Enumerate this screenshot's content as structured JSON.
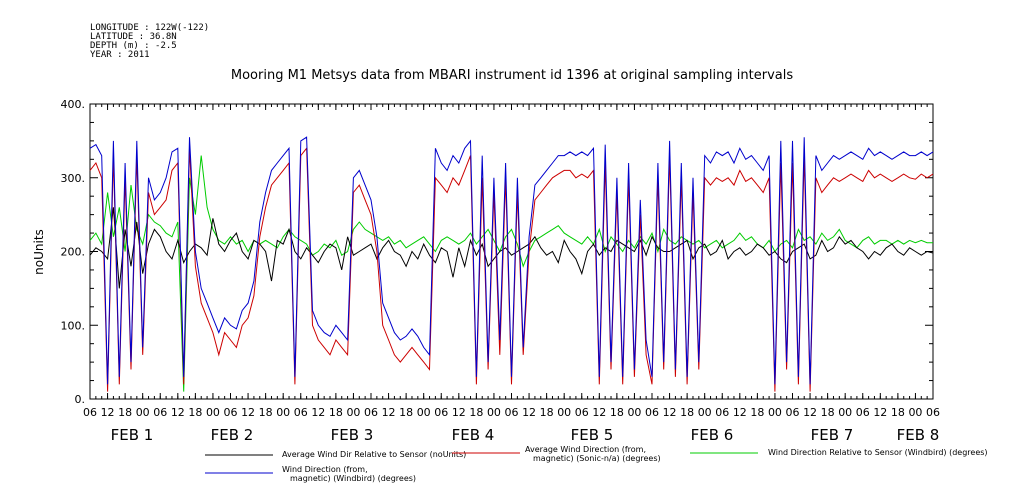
{
  "meta": {
    "longitude": "LONGITUDE : 122W(-122)",
    "latitude": "LATITUDE : 36.8N",
    "depth": "DEPTH (m) : -2.5",
    "year": "YEAR : 2011"
  },
  "chart_data": {
    "type": "line",
    "title": "Mooring M1 Metsys data from MBARI instrument id 1396 at original sampling intervals",
    "ylabel": "noUnits",
    "xlabel": "",
    "ylim": [
      0,
      400
    ],
    "xlim": [
      0,
      144
    ],
    "x_unit": "hours since 2011-02-01 06:00",
    "yticks": [
      0,
      100,
      200,
      300,
      400
    ],
    "hour_ticks": [
      "06",
      "12",
      "18",
      "00",
      "06",
      "12",
      "18",
      "00",
      "06",
      "12",
      "18",
      "00",
      "06",
      "12",
      "18",
      "00",
      "06",
      "12",
      "18",
      "00",
      "06",
      "12",
      "18",
      "00",
      "06",
      "12",
      "18",
      "00",
      "06",
      "12",
      "18",
      "00",
      "06",
      "12",
      "18",
      "00",
      "06",
      "12",
      "18",
      "00",
      "06",
      "12",
      "18",
      "00",
      "06",
      "12",
      "18",
      "00",
      "06"
    ],
    "day_labels": [
      {
        "label": "FEB  1",
        "x": 9
      },
      {
        "label": "FEB  2",
        "x": 27
      },
      {
        "label": "FEB  3",
        "x": 51
      },
      {
        "label": "FEB  4",
        "x": 75
      },
      {
        "label": "FEB  5",
        "x": 99
      },
      {
        "label": "FEB  6",
        "x": 123
      },
      {
        "label": "FEB  7",
        "x": 147
      },
      {
        "label": "FEB  8",
        "x": 168
      }
    ],
    "grid": false,
    "legend_position": "bottom",
    "series": [
      {
        "name": "Average Wind Dir Relative to Sensor (noUnits)",
        "color": "#000000",
        "x": [
          0,
          1,
          2,
          3,
          4,
          5,
          6,
          7,
          8,
          9,
          10,
          11,
          12,
          13,
          14,
          15,
          16,
          17,
          18,
          19,
          20,
          21,
          22,
          23,
          24,
          25,
          26,
          27,
          28,
          29,
          30,
          31,
          32,
          33,
          34,
          35,
          36,
          37,
          38,
          39,
          40,
          41,
          42,
          43,
          44,
          45,
          46,
          47,
          48,
          49,
          50,
          51,
          52,
          53,
          54,
          55,
          56,
          57,
          58,
          59,
          60,
          61,
          62,
          63,
          64,
          65,
          66,
          67,
          68,
          69,
          70,
          71,
          72,
          73,
          74,
          75,
          76,
          77,
          78,
          79,
          80,
          81,
          82,
          83,
          84,
          85,
          86,
          87,
          88,
          89,
          90,
          91,
          92,
          93,
          94,
          95,
          96,
          97,
          98,
          99,
          100,
          101,
          102,
          103,
          104,
          105,
          106,
          107,
          108,
          109,
          110,
          111,
          112,
          113,
          114,
          115,
          116,
          117,
          118,
          119,
          120,
          121,
          122,
          123,
          124,
          125,
          126,
          127,
          128,
          129,
          130,
          131,
          132,
          133,
          134,
          135,
          136,
          137,
          138,
          139,
          140,
          141,
          142,
          143,
          144
        ],
        "values": [
          195,
          205,
          200,
          190,
          260,
          150,
          230,
          180,
          240,
          170,
          210,
          230,
          220,
          200,
          190,
          215,
          185,
          200,
          210,
          205,
          195,
          245,
          210,
          200,
          215,
          225,
          200,
          190,
          215,
          210,
          200,
          160,
          215,
          210,
          230,
          200,
          190,
          205,
          195,
          185,
          200,
          210,
          205,
          175,
          220,
          195,
          200,
          205,
          210,
          190,
          205,
          215,
          200,
          195,
          180,
          200,
          190,
          210,
          195,
          185,
          205,
          200,
          165,
          205,
          180,
          215,
          195,
          210,
          180,
          190,
          200,
          205,
          195,
          200,
          205,
          210,
          220,
          205,
          195,
          200,
          185,
          215,
          200,
          190,
          170,
          200,
          210,
          195,
          205,
          200,
          215,
          210,
          205,
          200,
          215,
          195,
          220,
          205,
          200,
          200,
          205,
          210,
          215,
          190,
          205,
          210,
          195,
          200,
          215,
          190,
          200,
          205,
          195,
          200,
          210,
          205,
          195,
          200,
          190,
          185,
          200,
          205,
          210,
          190,
          195,
          215,
          200,
          205,
          220,
          210,
          215,
          205,
          200,
          190,
          200,
          195,
          205,
          210,
          200,
          195,
          205,
          200,
          195,
          200,
          198
        ]
      },
      {
        "name": "Average Wind Direction (from, magnetic) (Sonic-n/a) (degrees)",
        "color": "#cc0000",
        "x": [
          0,
          1,
          2,
          3,
          4,
          5,
          6,
          7,
          8,
          9,
          10,
          11,
          12,
          13,
          14,
          15,
          16,
          17,
          18,
          19,
          20,
          21,
          22,
          23,
          24,
          25,
          26,
          27,
          28,
          29,
          30,
          31,
          32,
          33,
          34,
          35,
          36,
          37,
          38,
          39,
          40,
          41,
          42,
          43,
          44,
          45,
          46,
          47,
          48,
          49,
          50,
          51,
          52,
          53,
          54,
          55,
          56,
          57,
          58,
          59,
          60,
          61,
          62,
          63,
          64,
          65,
          66,
          67,
          68,
          69,
          70,
          71,
          72,
          73,
          74,
          75,
          76,
          77,
          78,
          79,
          80,
          81,
          82,
          83,
          84,
          85,
          86,
          87,
          88,
          89,
          90,
          91,
          92,
          93,
          94,
          95,
          96,
          97,
          98,
          99,
          100,
          101,
          102,
          103,
          104,
          105,
          106,
          107,
          108,
          109,
          110,
          111,
          112,
          113,
          114,
          115,
          116,
          117,
          118,
          119,
          120,
          121,
          122,
          123,
          124,
          125,
          126,
          127,
          128,
          129,
          130,
          131,
          132,
          133,
          134,
          135,
          136,
          137,
          138,
          139,
          140,
          141,
          142,
          143,
          144
        ],
        "values": [
          310,
          320,
          300,
          10,
          330,
          20,
          300,
          40,
          330,
          60,
          280,
          250,
          260,
          270,
          310,
          320,
          20,
          340,
          180,
          130,
          110,
          90,
          60,
          90,
          80,
          70,
          100,
          110,
          140,
          220,
          260,
          290,
          300,
          310,
          320,
          20,
          330,
          340,
          100,
          80,
          70,
          60,
          80,
          70,
          60,
          280,
          290,
          270,
          250,
          200,
          100,
          80,
          60,
          50,
          60,
          70,
          60,
          50,
          40,
          300,
          290,
          280,
          300,
          290,
          310,
          330,
          20,
          300,
          40,
          280,
          60,
          300,
          20,
          280,
          60,
          200,
          270,
          280,
          290,
          300,
          305,
          310,
          310,
          300,
          305,
          300,
          310,
          20,
          320,
          40,
          280,
          20,
          300,
          30,
          250,
          60,
          20,
          300,
          40,
          330,
          30,
          300,
          20,
          280,
          40,
          300,
          290,
          300,
          295,
          300,
          290,
          310,
          295,
          300,
          290,
          280,
          300,
          10,
          320,
          40,
          320,
          20,
          330,
          10,
          300,
          280,
          290,
          300,
          295,
          300,
          305,
          300,
          295,
          310,
          300,
          305,
          300,
          295,
          300,
          305,
          300,
          298,
          305,
          300,
          305
        ]
      },
      {
        "name": "Wind Direction Relative to Sensor (Windbird) (degrees)",
        "color": "#00cc00",
        "x": [
          0,
          1,
          2,
          3,
          4,
          5,
          6,
          7,
          8,
          9,
          10,
          11,
          12,
          13,
          14,
          15,
          16,
          17,
          18,
          19,
          20,
          21,
          22,
          23,
          24,
          25,
          26,
          27,
          28,
          29,
          30,
          31,
          32,
          33,
          34,
          35,
          36,
          37,
          38,
          39,
          40,
          41,
          42,
          43,
          44,
          45,
          46,
          47,
          48,
          49,
          50,
          51,
          52,
          53,
          54,
          55,
          56,
          57,
          58,
          59,
          60,
          61,
          62,
          63,
          64,
          65,
          66,
          67,
          68,
          69,
          70,
          71,
          72,
          73,
          74,
          75,
          76,
          77,
          78,
          79,
          80,
          81,
          82,
          83,
          84,
          85,
          86,
          87,
          88,
          89,
          90,
          91,
          92,
          93,
          94,
          95,
          96,
          97,
          98,
          99,
          100,
          101,
          102,
          103,
          104,
          105,
          106,
          107,
          108,
          109,
          110,
          111,
          112,
          113,
          114,
          115,
          116,
          117,
          118,
          119,
          120,
          121,
          122,
          123,
          124,
          125,
          126,
          127,
          128,
          129,
          130,
          131,
          132,
          133,
          134,
          135,
          136,
          137,
          138,
          139,
          140,
          141,
          142,
          143,
          144
        ],
        "values": [
          215,
          225,
          210,
          280,
          220,
          260,
          200,
          290,
          230,
          210,
          250,
          240,
          235,
          225,
          220,
          240,
          10,
          300,
          250,
          330,
          260,
          230,
          215,
          210,
          220,
          210,
          215,
          200,
          215,
          210,
          215,
          210,
          205,
          220,
          230,
          220,
          215,
          210,
          195,
          200,
          210,
          205,
          215,
          195,
          200,
          230,
          240,
          230,
          225,
          220,
          215,
          220,
          210,
          215,
          205,
          210,
          215,
          220,
          210,
          200,
          215,
          220,
          215,
          210,
          215,
          225,
          210,
          220,
          230,
          215,
          200,
          220,
          230,
          210,
          180,
          200,
          215,
          220,
          225,
          230,
          235,
          225,
          220,
          215,
          210,
          220,
          210,
          230,
          200,
          220,
          210,
          200,
          215,
          205,
          220,
          210,
          225,
          200,
          230,
          215,
          210,
          220,
          215,
          210,
          215,
          205,
          210,
          215,
          205,
          210,
          215,
          225,
          215,
          220,
          210,
          205,
          215,
          200,
          210,
          215,
          205,
          230,
          215,
          220,
          210,
          225,
          215,
          220,
          230,
          215,
          210,
          205,
          215,
          220,
          210,
          215,
          215,
          210,
          215,
          210,
          215,
          212,
          215,
          212,
          212
        ]
      },
      {
        "name": "Wind Direction (from, magnetic) (Windbird) (degrees)",
        "color": "#0000cc",
        "x": [
          0,
          1,
          2,
          3,
          4,
          5,
          6,
          7,
          8,
          9,
          10,
          11,
          12,
          13,
          14,
          15,
          16,
          17,
          18,
          19,
          20,
          21,
          22,
          23,
          24,
          25,
          26,
          27,
          28,
          29,
          30,
          31,
          32,
          33,
          34,
          35,
          36,
          37,
          38,
          39,
          40,
          41,
          42,
          43,
          44,
          45,
          46,
          47,
          48,
          49,
          50,
          51,
          52,
          53,
          54,
          55,
          56,
          57,
          58,
          59,
          60,
          61,
          62,
          63,
          64,
          65,
          66,
          67,
          68,
          69,
          70,
          71,
          72,
          73,
          74,
          75,
          76,
          77,
          78,
          79,
          80,
          81,
          82,
          83,
          84,
          85,
          86,
          87,
          88,
          89,
          90,
          91,
          92,
          93,
          94,
          95,
          96,
          97,
          98,
          99,
          100,
          101,
          102,
          103,
          104,
          105,
          106,
          107,
          108,
          109,
          110,
          111,
          112,
          113,
          114,
          115,
          116,
          117,
          118,
          119,
          120,
          121,
          122,
          123,
          124,
          125,
          126,
          127,
          128,
          129,
          130,
          131,
          132,
          133,
          134,
          135,
          136,
          137,
          138,
          139,
          140,
          141,
          142,
          143,
          144
        ],
        "values": [
          340,
          345,
          330,
          20,
          350,
          30,
          320,
          50,
          350,
          70,
          300,
          270,
          280,
          300,
          335,
          340,
          30,
          355,
          200,
          150,
          130,
          110,
          90,
          110,
          100,
          95,
          120,
          130,
          160,
          240,
          280,
          310,
          320,
          330,
          340,
          30,
          350,
          355,
          120,
          100,
          90,
          85,
          100,
          90,
          80,
          300,
          310,
          290,
          270,
          220,
          130,
          110,
          90,
          80,
          85,
          95,
          85,
          70,
          60,
          340,
          320,
          310,
          330,
          320,
          340,
          350,
          30,
          330,
          50,
          300,
          80,
          320,
          30,
          300,
          70,
          220,
          290,
          300,
          310,
          320,
          330,
          330,
          335,
          330,
          335,
          330,
          340,
          30,
          345,
          50,
          300,
          30,
          320,
          40,
          270,
          80,
          30,
          320,
          50,
          350,
          40,
          320,
          30,
          300,
          50,
          330,
          320,
          335,
          330,
          335,
          320,
          340,
          325,
          330,
          320,
          310,
          330,
          20,
          350,
          50,
          350,
          30,
          355,
          20,
          330,
          310,
          320,
          330,
          325,
          330,
          335,
          330,
          325,
          340,
          330,
          335,
          330,
          325,
          330,
          335,
          330,
          330,
          335,
          330,
          335
        ]
      }
    ]
  },
  "legend": {
    "entries": [
      {
        "line1": "Average Wind Dir Relative to Sensor (noUnits)",
        "line2": ""
      },
      {
        "line1": "Average Wind Direction (from,",
        "line2": "magnetic) (Sonic-n/a) (degrees)"
      },
      {
        "line1": "Wind Direction Relative to Sensor (Windbird) (degrees)",
        "line2": ""
      },
      {
        "line1": "Wind Direction (from,",
        "line2": "magnetic) (Windbird) (degrees)"
      }
    ]
  }
}
